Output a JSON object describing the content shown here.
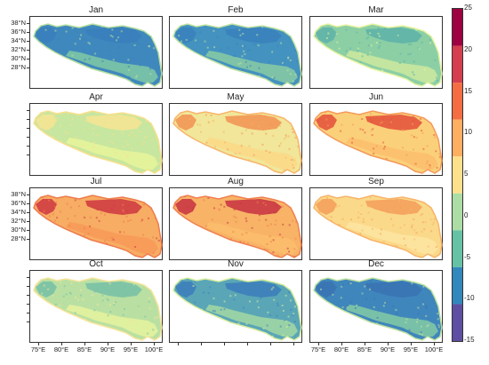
{
  "months": [
    "Jan",
    "Feb",
    "Mar",
    "Apr",
    "May",
    "Jun",
    "Jul",
    "Aug",
    "Sep",
    "Oct",
    "Nov",
    "Dec"
  ],
  "lat_ticks": [
    "38°N",
    "36°N",
    "34°N",
    "32°N",
    "30°N",
    "28°N"
  ],
  "lon_ticks": [
    "75°E",
    "80°E",
    "85°E",
    "90°E",
    "95°E",
    "100°E"
  ],
  "colorbar": {
    "labels": [
      "25",
      "20",
      "15",
      "10",
      "5",
      "0",
      "-5",
      "-10",
      "-15"
    ],
    "colors": [
      "#9e0142",
      "#d53e4f",
      "#f46d43",
      "#fdae61",
      "#fee08b",
      "#abdda4",
      "#66c2a5",
      "#3288bd",
      "#5e4fa2"
    ]
  },
  "panel_fill": {
    "Jan": {
      "main": "#3f88bd",
      "north": "#3a7fbb",
      "south": "#7cc5a5",
      "edge": "#b9e0a0"
    },
    "Feb": {
      "main": "#4392c0",
      "north": "#3b82bc",
      "south": "#85c9a4",
      "edge": "#c2e3a0"
    },
    "Mar": {
      "main": "#8ccfa5",
      "north": "#5fb3a8",
      "south": "#c9e79f",
      "edge": "#e8f4a0"
    },
    "Apr": {
      "main": "#c7e69f",
      "north": "#f3e494",
      "south": "#e6f49a",
      "edge": "#f8e08d"
    },
    "May": {
      "main": "#f1e699",
      "north": "#f29657",
      "south": "#fbd988",
      "edge": "#f8b56a"
    },
    "Jun": {
      "main": "#fbd07a",
      "north": "#e4553d",
      "south": "#fcbf6e",
      "edge": "#f49a5a"
    },
    "Jul": {
      "main": "#f7ad63",
      "north": "#cf3d43",
      "south": "#f79a59",
      "edge": "#ef7b4d"
    },
    "Aug": {
      "main": "#f8b366",
      "north": "#c93744",
      "south": "#fbbd6c",
      "edge": "#f08050"
    },
    "Sep": {
      "main": "#fbd98a",
      "north": "#f4a05c",
      "south": "#fde4a0",
      "edge": "#f7b46a"
    },
    "Oct": {
      "main": "#b9e0a2",
      "north": "#7ac1a6",
      "south": "#e3f29d",
      "edge": "#f7e49a"
    },
    "Nov": {
      "main": "#5aa6b7",
      "north": "#3d7fba",
      "south": "#9ed6a4",
      "edge": "#d7ec9f"
    },
    "Dec": {
      "main": "#3f86bc",
      "north": "#3a73b3",
      "south": "#80c7a5",
      "edge": "#bfe1a0"
    }
  }
}
